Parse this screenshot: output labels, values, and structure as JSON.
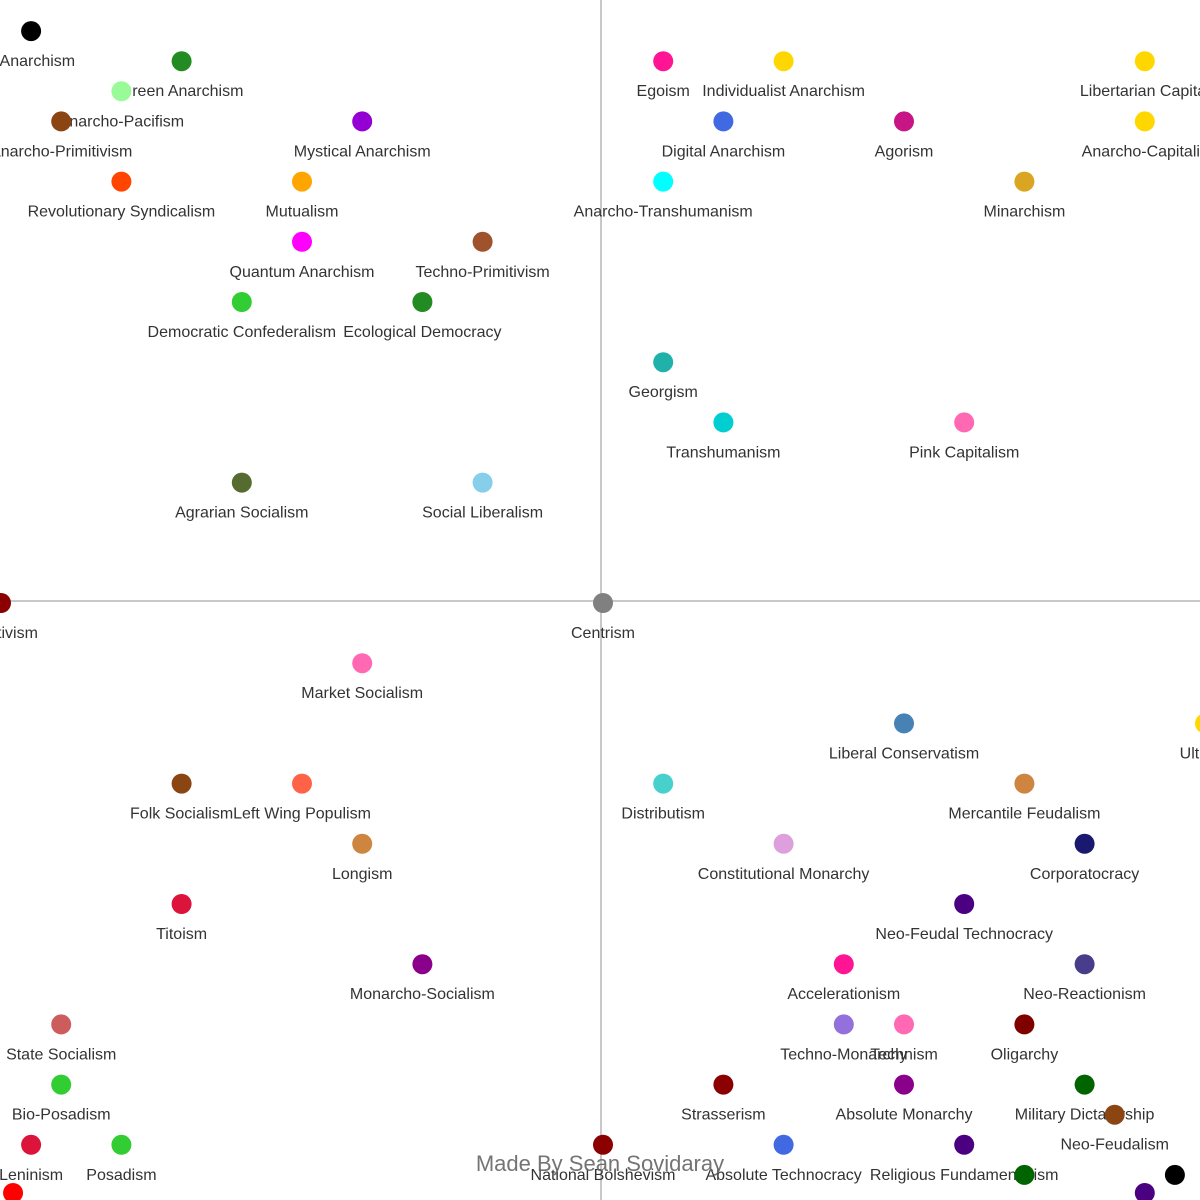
{
  "chart_data": {
    "type": "scatter",
    "title": "",
    "xlabel": "",
    "ylabel": "",
    "xlim": [
      -10,
      10
    ],
    "ylim": [
      -10,
      10
    ],
    "grid": false,
    "axes": "centered cross",
    "credit": "Made By Sean Sovidaray",
    "points": [
      {
        "label": "e Anarchism",
        "x": -9.5,
        "y": 9.5,
        "color": "#000000"
      },
      {
        "label": "Green Anarchism",
        "x": -7.0,
        "y": 9.0,
        "color": "#228b22"
      },
      {
        "label": "Anarcho-Pacifism",
        "x": -8.0,
        "y": 8.5,
        "color": "#98fb98"
      },
      {
        "label": "Anarcho-Primitivism",
        "x": -9.0,
        "y": 8.0,
        "color": "#8b4513"
      },
      {
        "label": "Mystical Anarchism",
        "x": -4.0,
        "y": 8.0,
        "color": "#9400d3"
      },
      {
        "label": "Revolutionary Syndicalism",
        "x": -8.0,
        "y": 7.0,
        "color": "#ff4500"
      },
      {
        "label": "Mutualism",
        "x": -5.0,
        "y": 7.0,
        "color": "#ffa500"
      },
      {
        "label": "Quantum Anarchism",
        "x": -5.0,
        "y": 6.0,
        "color": "#ff00ff"
      },
      {
        "label": "Techno-Primitivism",
        "x": -2.0,
        "y": 6.0,
        "color": "#a0522d"
      },
      {
        "label": "Democratic Confederalism",
        "x": -6.0,
        "y": 5.0,
        "color": "#32cd32"
      },
      {
        "label": "Ecological Democracy",
        "x": -3.0,
        "y": 5.0,
        "color": "#228b22"
      },
      {
        "label": "Agrarian Socialism",
        "x": -6.0,
        "y": 2.0,
        "color": "#556b2f"
      },
      {
        "label": "Social Liberalism",
        "x": -2.0,
        "y": 2.0,
        "color": "#87ceeb"
      },
      {
        "label": "Egoism",
        "x": 1.0,
        "y": 9.0,
        "color": "#ff1493"
      },
      {
        "label": "Individualist Anarchism",
        "x": 3.0,
        "y": 9.0,
        "color": "#ffd700"
      },
      {
        "label": "Libertarian Capital",
        "x": 9.0,
        "y": 9.0,
        "color": "#ffd700"
      },
      {
        "label": "Digital Anarchism",
        "x": 2.0,
        "y": 8.0,
        "color": "#4169e1"
      },
      {
        "label": "Agorism",
        "x": 5.0,
        "y": 8.0,
        "color": "#c71585"
      },
      {
        "label": "Anarcho-Capitalis",
        "x": 9.0,
        "y": 8.0,
        "color": "#ffd700"
      },
      {
        "label": "Anarcho-Transhumanism",
        "x": 1.0,
        "y": 7.0,
        "color": "#00ffff"
      },
      {
        "label": "Minarchism",
        "x": 7.0,
        "y": 7.0,
        "color": "#daa520"
      },
      {
        "label": "Georgism",
        "x": 1.0,
        "y": 4.0,
        "color": "#20b2aa"
      },
      {
        "label": "Transhumanism",
        "x": 2.0,
        "y": 3.0,
        "color": "#00ced1"
      },
      {
        "label": "Pink Capitalism",
        "x": 6.0,
        "y": 3.0,
        "color": "#ff69b4"
      },
      {
        "label": "ollectivism",
        "x": -10.0,
        "y": 0.0,
        "color": "#8b0000"
      },
      {
        "label": "Centrism",
        "x": 0.0,
        "y": 0.0,
        "color": "#808080"
      },
      {
        "label": "Market Socialism",
        "x": -4.0,
        "y": -1.0,
        "color": "#ff69b4"
      },
      {
        "label": "Liberal Conservatism",
        "x": 5.0,
        "y": -2.0,
        "color": "#4682b4"
      },
      {
        "label": "Ultra-C",
        "x": 10.0,
        "y": -2.0,
        "color": "#ffd700"
      },
      {
        "label": "Folk Socialism",
        "x": -7.0,
        "y": -3.0,
        "color": "#8b4513"
      },
      {
        "label": "Left Wing Populism",
        "x": -5.0,
        "y": -3.0,
        "color": "#ff6347"
      },
      {
        "label": "Distributism",
        "x": 1.0,
        "y": -3.0,
        "color": "#48d1cc"
      },
      {
        "label": "Mercantile Feudalism",
        "x": 7.0,
        "y": -3.0,
        "color": "#cd853f"
      },
      {
        "label": "Longism",
        "x": -4.0,
        "y": -4.0,
        "color": "#cd853f"
      },
      {
        "label": "Constitutional Monarchy",
        "x": 3.0,
        "y": -4.0,
        "color": "#dda0dd"
      },
      {
        "label": "Corporatocracy",
        "x": 8.0,
        "y": -4.0,
        "color": "#191970"
      },
      {
        "label": "Titoism",
        "x": -7.0,
        "y": -5.0,
        "color": "#dc143c"
      },
      {
        "label": "Neo-Feudal Technocracy",
        "x": 6.0,
        "y": -5.0,
        "color": "#4b0082"
      },
      {
        "label": "Monarcho-Socialism",
        "x": -3.0,
        "y": -6.0,
        "color": "#8b008b"
      },
      {
        "label": "Accelerationism",
        "x": 4.0,
        "y": -6.0,
        "color": "#ff1493"
      },
      {
        "label": "Neo-Reactionism",
        "x": 8.0,
        "y": -6.0,
        "color": "#483d8b"
      },
      {
        "label": "State Socialism",
        "x": -9.0,
        "y": -7.0,
        "color": "#cd5c5c"
      },
      {
        "label": "Techno-Monarchy",
        "x": 4.0,
        "y": -7.0,
        "color": "#9370db"
      },
      {
        "label": "Technism",
        "x": 5.0,
        "y": -7.0,
        "color": "#ff69b4"
      },
      {
        "label": "Oligarchy",
        "x": 7.0,
        "y": -7.0,
        "color": "#800000"
      },
      {
        "label": "Bio-Posadism",
        "x": -9.0,
        "y": -8.0,
        "color": "#32cd32"
      },
      {
        "label": "Strasserism",
        "x": 2.0,
        "y": -8.0,
        "color": "#8b0000"
      },
      {
        "label": "Absolute Monarchy",
        "x": 5.0,
        "y": -8.0,
        "color": "#8b008b"
      },
      {
        "label": "Military Dictatorship",
        "x": 8.0,
        "y": -8.0,
        "color": "#006400"
      },
      {
        "label": "Neo-Feudalism",
        "x": 8.5,
        "y": -8.5,
        "color": "#8b4513"
      },
      {
        "label": "Leninism",
        "x": -9.5,
        "y": -9.0,
        "color": "#dc143c"
      },
      {
        "label": "Posadism",
        "x": -8.0,
        "y": -9.0,
        "color": "#32cd32"
      },
      {
        "label": "National Bolshevism",
        "x": 0.0,
        "y": -9.0,
        "color": "#8b0000"
      },
      {
        "label": "Absolute Technocracy",
        "x": 3.0,
        "y": -9.0,
        "color": "#4169e1"
      },
      {
        "label": "Religious Fundamentalism",
        "x": 6.0,
        "y": -9.0,
        "color": "#4b0082"
      },
      {
        "label": "",
        "x": -9.8,
        "y": -9.8,
        "color": "#ff0000"
      },
      {
        "label": "",
        "x": 7.0,
        "y": -9.5,
        "color": "#006400"
      },
      {
        "label": "",
        "x": 9.5,
        "y": -9.5,
        "color": "#000000"
      },
      {
        "label": "",
        "x": 9.0,
        "y": -9.8,
        "color": "#4b0082"
      }
    ]
  }
}
